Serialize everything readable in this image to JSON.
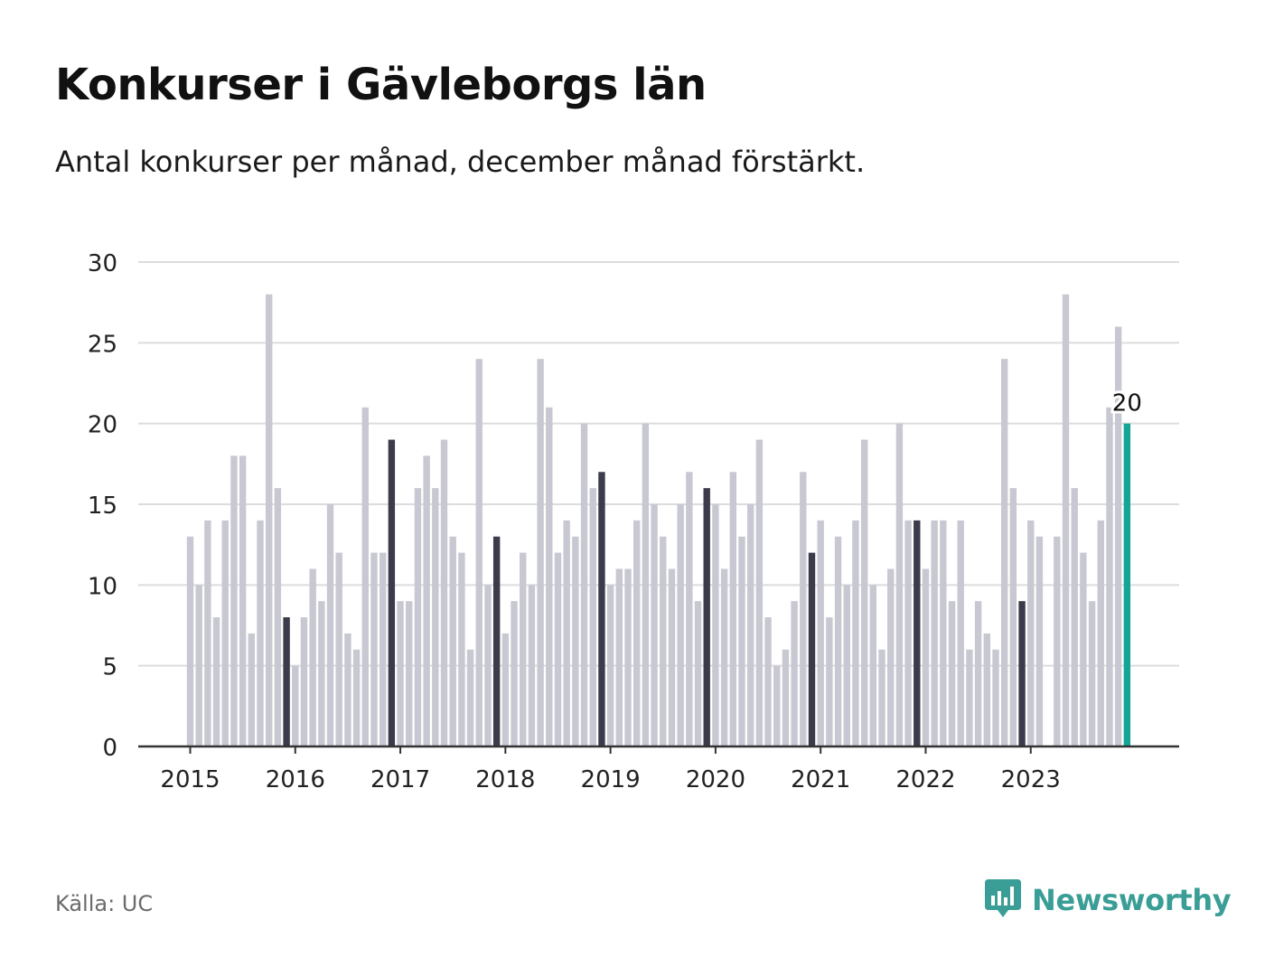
{
  "header": {
    "title": "Konkurser i Gävleborgs län",
    "subtitle": "Antal konkurser per månad, december månad förstärkt."
  },
  "footer": {
    "source": "Källa: UC",
    "brand": "Newsworthy"
  },
  "colors": {
    "bar": "#c8c8d2",
    "december": "#3b3b4b",
    "latest": "#14a596",
    "grid": "#dcdcdc",
    "axis": "#333333",
    "brand": "#3a9e96"
  },
  "icons": {
    "brand_logo": "bar-chart-speech-bubble-icon"
  },
  "chart_data": {
    "type": "bar",
    "title": "Konkurser i Gävleborgs län",
    "subtitle": "Antal konkurser per månad, december månad förstärkt.",
    "xlabel": "",
    "ylabel": "",
    "ylim": [
      0,
      30
    ],
    "yticks": [
      0,
      5,
      10,
      15,
      20,
      25,
      30
    ],
    "x_tick_labels": [
      "2015",
      "2016",
      "2017",
      "2018",
      "2019",
      "2020",
      "2021",
      "2022",
      "2023"
    ],
    "grid": true,
    "legend": "none",
    "highlight": "december",
    "annotation": {
      "text": "20",
      "target": "2023-12"
    },
    "values_by_year": {
      "2015": [
        13,
        10,
        14,
        8,
        14,
        18,
        18,
        7,
        14,
        28,
        16,
        8
      ],
      "2016": [
        5,
        8,
        11,
        9,
        15,
        12,
        7,
        6,
        21,
        12,
        12,
        19
      ],
      "2017": [
        9,
        9,
        16,
        18,
        16,
        19,
        13,
        12,
        6,
        24,
        10,
        13
      ],
      "2018": [
        7,
        9,
        12,
        10,
        24,
        21,
        12,
        14,
        13,
        20,
        16,
        17
      ],
      "2019": [
        10,
        11,
        11,
        14,
        20,
        15,
        13,
        11,
        15,
        17,
        9,
        16
      ],
      "2020": [
        15,
        11,
        17,
        13,
        15,
        19,
        8,
        5,
        6,
        9,
        17,
        12
      ],
      "2021": [
        14,
        8,
        13,
        10,
        14,
        19,
        10,
        6,
        11,
        20,
        14,
        14
      ],
      "2022": [
        11,
        14,
        14,
        9,
        14,
        6,
        9,
        7,
        6,
        24,
        16,
        9
      ],
      "2023": [
        14,
        13,
        0,
        13,
        28,
        16,
        12,
        9,
        14,
        21,
        26,
        20
      ]
    }
  }
}
